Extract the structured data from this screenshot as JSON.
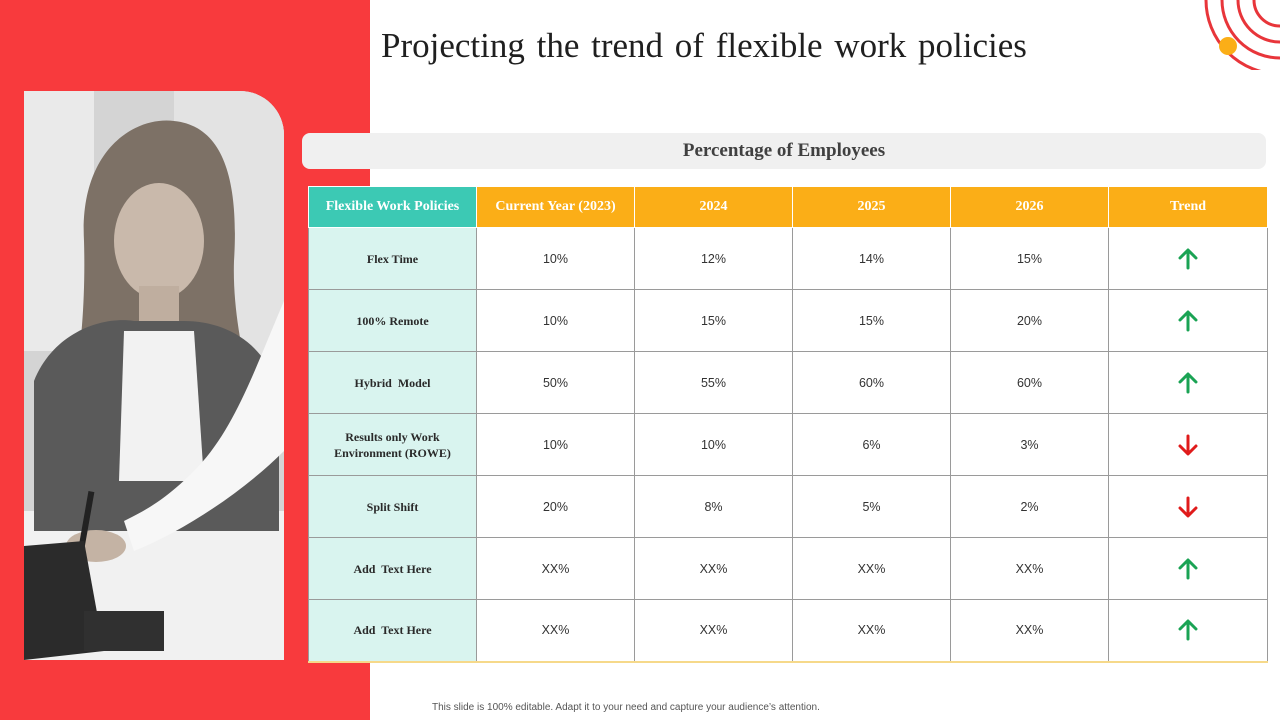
{
  "slide": {
    "title": "Projecting the trend of flexible work policies",
    "section_header": "Percentage of Employees",
    "footer_note": "This slide is 100% editable. Adapt it to your need and capture your audience’s attention."
  },
  "colors": {
    "red_band": "#f83a3d",
    "header_teal": "#3cc9b4",
    "header_orange": "#fbae17",
    "row_label_bg": "#d9f4ef",
    "trend_up": "#1aa354",
    "trend_down": "#e01b1b"
  },
  "table": {
    "headers": [
      "Flexible Work Policies",
      "Current Year (2023)",
      "2024",
      "2025",
      "2026",
      "Trend"
    ],
    "rows": [
      {
        "policy": "Flex Time",
        "values": [
          "10%",
          "12%",
          "14%",
          "15%"
        ],
        "trend": "up"
      },
      {
        "policy": "100% Remote",
        "values": [
          "10%",
          "15%",
          "15%",
          "20%"
        ],
        "trend": "up"
      },
      {
        "policy": "Hybrid  Model",
        "values": [
          "50%",
          "55%",
          "60%",
          "60%"
        ],
        "trend": "up"
      },
      {
        "policy": "Results only Work Environment  (ROWE)",
        "values": [
          "10%",
          "10%",
          "6%",
          "3%"
        ],
        "trend": "down"
      },
      {
        "policy": "Split Shift",
        "values": [
          "20%",
          "8%",
          "5%",
          "2%"
        ],
        "trend": "down"
      },
      {
        "policy": "Add  Text Here",
        "values": [
          "XX%",
          "XX%",
          "XX%",
          "XX%"
        ],
        "trend": "up"
      },
      {
        "policy": "Add  Text Here",
        "values": [
          "XX%",
          "XX%",
          "XX%",
          "XX%"
        ],
        "trend": "up"
      }
    ]
  },
  "icons": {
    "trend_up": "arrow-up-icon",
    "trend_down": "arrow-down-icon",
    "photo": "woman-working-photo",
    "decoration": "concentric-arcs-decoration"
  }
}
